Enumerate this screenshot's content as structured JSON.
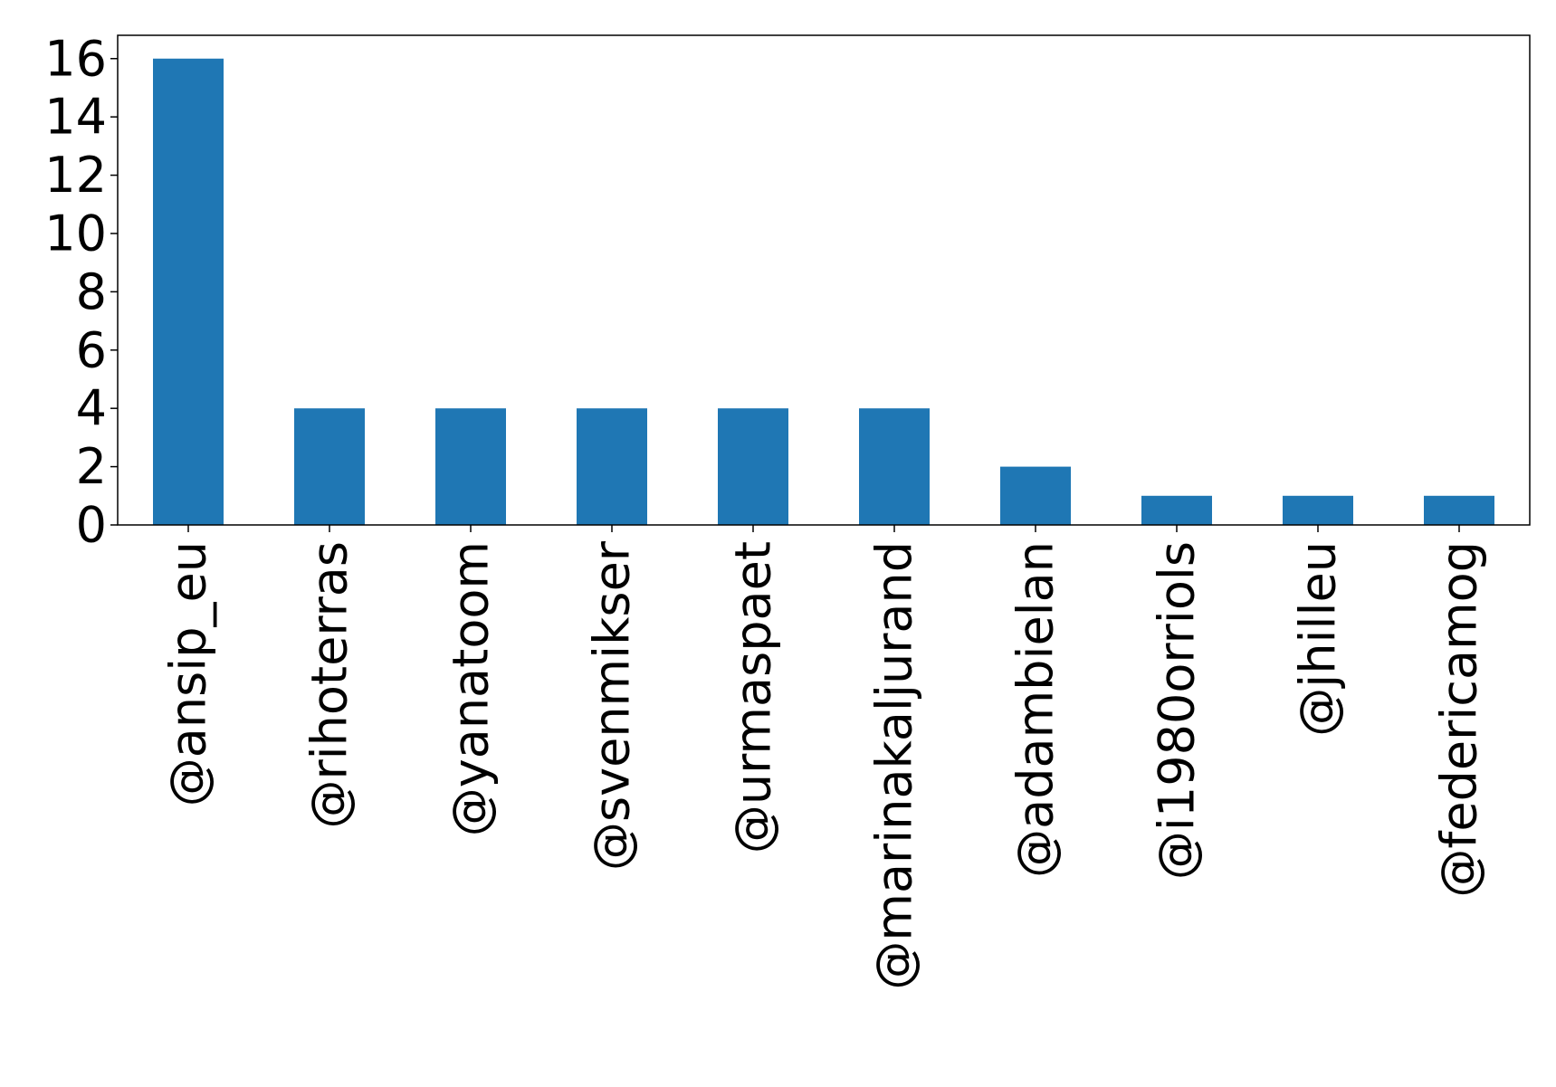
{
  "chart_data": {
    "type": "bar",
    "title": "",
    "xlabel": "",
    "ylabel": "",
    "categories": [
      "@ansip_eu",
      "@rihoterras",
      "@yanatoom",
      "@svenmikser",
      "@urmaspaet",
      "@marinakaljurand",
      "@adambielan",
      "@i1980orriols",
      "@jhilleu",
      "@federicamog"
    ],
    "values": [
      16,
      4,
      4,
      4,
      4,
      4,
      2,
      1,
      1,
      1
    ],
    "yticks": [
      0,
      2,
      4,
      6,
      8,
      10,
      12,
      14,
      16
    ],
    "ylim": [
      0,
      16.8
    ],
    "grid": false,
    "legend": "none",
    "bar_color": "#1f77b4"
  }
}
